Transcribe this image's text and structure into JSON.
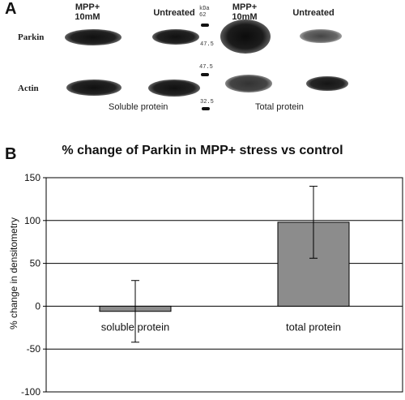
{
  "panel_a": {
    "letter": "A",
    "lanes": [
      {
        "line1": "MPP+",
        "line2": "10mM"
      },
      {
        "line1": "Untreated",
        "line2": ""
      },
      {
        "line1": "MPP+",
        "line2": "10mM"
      },
      {
        "line1": "Untreated",
        "line2": ""
      }
    ],
    "row_labels": {
      "parkin": "Parkin",
      "actin": "Actin"
    },
    "kda_title": "kDa",
    "markers": [
      "62",
      "47.5",
      "47.5",
      "32.5"
    ],
    "section_labels": {
      "soluble": "Soluble protein",
      "total": "Total protein"
    }
  },
  "panel_b": {
    "letter": "B"
  },
  "chart_data": {
    "type": "bar",
    "title": "% change of Parkin in MPP+ stress vs control",
    "xlabel": "",
    "ylabel": "% change in densitometry",
    "categories": [
      "soluble protein",
      "total protein"
    ],
    "values": [
      -6,
      98
    ],
    "error": [
      36,
      42
    ],
    "ylim": [
      -100,
      150
    ],
    "yticks": [
      -100,
      -50,
      0,
      50,
      100,
      150
    ],
    "grid": true,
    "bar_color": "#8c8c8c"
  }
}
